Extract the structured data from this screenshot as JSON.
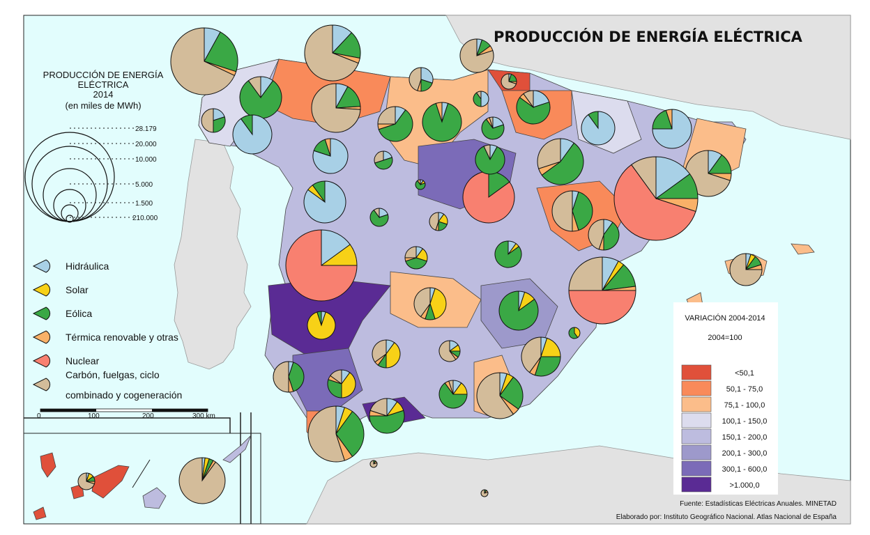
{
  "title": "PRODUCCIÓN DE ENERGÍA ELÉCTRICA",
  "size_legend": {
    "heading_1": "PRODUCCIÓN DE ENERGÍA",
    "heading_2": "ELÉCTRICA",
    "year": "2014",
    "unit": "(en miles de MWh)",
    "values": [
      "28.179",
      "20.000",
      "10.000",
      "5.000",
      "1.500",
      "210.000"
    ]
  },
  "categories": [
    {
      "label": "Hidráulica",
      "color": "#a8d0e6"
    },
    {
      "label": "Solar",
      "color": "#f7d117"
    },
    {
      "label": "Eólica",
      "color": "#3aa845"
    },
    {
      "label": "Térmica renovable y otras",
      "color": "#f9b168"
    },
    {
      "label": "Nuclear",
      "color": "#f88070"
    },
    {
      "label": "Carbón, fuelgas, ciclo",
      "label_2": "combinado y cogeneración",
      "color": "#d3bc9a"
    }
  ],
  "scale_bar": {
    "ticks": [
      "0",
      "100",
      "200",
      "300 km"
    ]
  },
  "variation_legend": {
    "title": "VARIACIÓN 2004-2014",
    "base": "2004=100",
    "classes": [
      {
        "label": "<50,1",
        "color": "#e0503a"
      },
      {
        "label": "50,1 - 75,0",
        "color": "#f98a5a"
      },
      {
        "label": "75,1 - 100,0",
        "color": "#fbbd8a"
      },
      {
        "label": "100,1 - 150,0",
        "color": "#dcdcee"
      },
      {
        "label": "150,1 - 200,0",
        "color": "#bdbcdf"
      },
      {
        "label": "200,1 - 300,0",
        "color": "#9d99cb"
      },
      {
        "label": "300,1 - 600,0",
        "color": "#7b6bb8"
      },
      {
        "label": ">1.000,0",
        "color": "#5a2b94"
      }
    ]
  },
  "source": "Fuente: Estadísticas Eléctricas Anuales. MINETAD",
  "credit": "Elaborado por: Instituto Geográfico Nacional. Atlas Nacional de España",
  "colors": {
    "sea": "#e2fdfd",
    "land_other": "#e2e2e2",
    "border": "#222222"
  }
}
